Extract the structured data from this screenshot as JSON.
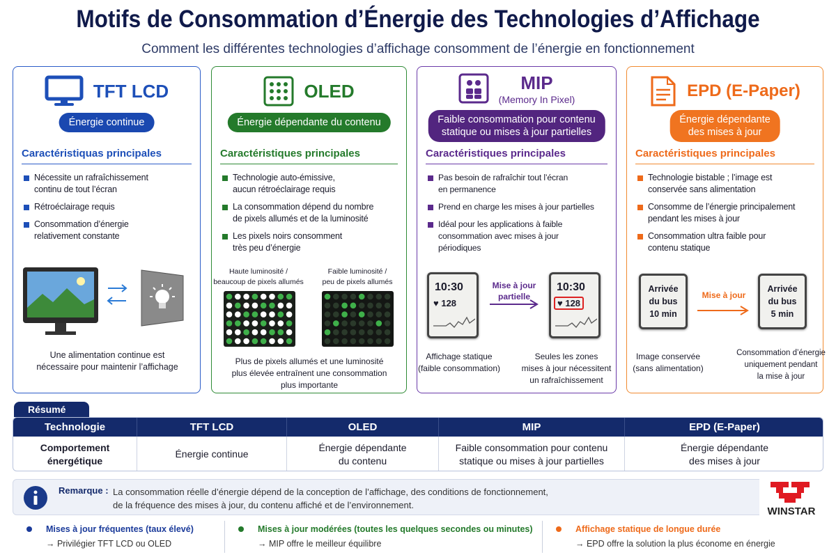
{
  "header": {
    "title": "Motifs de Consommation d’Énergie des Technologies d’Affichage",
    "subtitle": "Comment les différentes technologies d’affichage consomment de l’énergie en fonctionnement"
  },
  "cards": [
    {
      "title": "TFT LCD",
      "badge": [
        "Énergie continue"
      ],
      "section_title": "Caractéristiquas principales",
      "bullets": [
        [
          "Nécessite un rafraîchissement",
          "continu de tout l’écran"
        ],
        [
          "Rétroéclairage requis"
        ],
        [
          "Consommation d’énergie",
          "relativement constante"
        ]
      ],
      "caption": [
        "Une alimentation continue est",
        "nécessaire pour maintenir l’affichage"
      ]
    },
    {
      "title": "OLED",
      "badge": [
        "Énergie dépendante du contenu"
      ],
      "section_title": "Caractéristiques principales",
      "bullets": [
        [
          "Technologie auto-émissive,",
          "aucun rétroéclairage requis"
        ],
        [
          "La consommation dépend du nombre",
          "de pixels allumés et de la luminosité"
        ],
        [
          "Les pixels noirs consomment",
          "très peu d’énergie"
        ]
      ],
      "panels": [
        [
          "Haute luminosité /",
          "beaucoup de pixels allumés"
        ],
        [
          "Faible luminosité /",
          "peu de pixels allumés"
        ]
      ],
      "caption": [
        "Plus de pixels allumés et une luminosité",
        "plus élevée entraînent une consommation",
        "plus importante"
      ]
    },
    {
      "title": "MIP",
      "subtitle": "(Memory In Pixel)",
      "badge": [
        "Faible consommation pour contenu",
        "statique ou mises à jour partielles"
      ],
      "section_title": "Caractéristiques principales",
      "bullets": [
        [
          "Pas besoin de rafraîchir tout l’écran",
          "en permanence"
        ],
        [
          "Prend en charge les mises à jour partielles"
        ],
        [
          "Idéal pour les applications à faible",
          "consommation avec mises à jour",
          "périodiques"
        ]
      ],
      "screens": [
        {
          "time": "10:30",
          "value": "128"
        },
        {
          "time": "10:30",
          "value": "128"
        }
      ],
      "arrow_label": [
        "Mise à jour",
        "partielle"
      ],
      "captions": [
        [
          "Affichage statique",
          "(faible consommation)"
        ],
        [
          "Seules les zones",
          "mises à jour nécessitent",
          "un rafraîchissement"
        ]
      ]
    },
    {
      "title": "EPD (E-Paper)",
      "badge": [
        "Énergie dépendante",
        "des mises à jour"
      ],
      "section_title": "Caractéristiques principales",
      "bullets": [
        [
          "Technologie bistable ; l’image est",
          "conservée sans alimentation"
        ],
        [
          "Consomme de l’énergie principalement",
          "pendant les mises à jour"
        ],
        [
          "Consommation ultra faible pour",
          "contenu statique"
        ]
      ],
      "screens": [
        [
          "Arrivée",
          "du bus",
          "10 min"
        ],
        [
          "Arrivée",
          "du bus",
          "5 min"
        ]
      ],
      "arrow_label": [
        "Mise à jour"
      ],
      "captions": [
        [
          "Image conservée",
          "(sans alimentation)"
        ],
        [
          "Consommation d’énergie",
          "uniquement pendant",
          "la mise à jour"
        ]
      ]
    }
  ],
  "summary": {
    "label": "Résumé",
    "header": [
      "Technologie",
      "TFT LCD",
      "OLED",
      "MIP",
      "EPD (E-Paper)"
    ],
    "row": [
      [
        "Comportement",
        "énergétique"
      ],
      [
        "Énergie continue"
      ],
      [
        "Énergie dépendante",
        "du contenu"
      ],
      [
        "Faible consommation pour contenu",
        "statique ou mises à jour partielles"
      ],
      [
        "Énergie dépendante",
        "des mises à jour"
      ]
    ]
  },
  "note": {
    "label": "Remarque :",
    "lines": [
      "La consommation réelle d’énergie dépend de la conception de l’affichage, des conditions de fonctionnement,",
      "de la fréquence des mises à jour, du contenu affiché et de l’environnement."
    ]
  },
  "footer": [
    {
      "title": "Mises à jour fréquentes (taux élevé)",
      "text": "→ Privilégier TFT LCD ou OLED"
    },
    {
      "title": "Mises à jour modérées (toutes les quelques secondes ou minutes)",
      "text": "→ MIP offre le meilleur équilibre"
    },
    {
      "title": "Affichage statique de longue durée",
      "text": "→ EPD offre la solution la plus économe en énergie"
    }
  ],
  "logo": "WINSTAR"
}
